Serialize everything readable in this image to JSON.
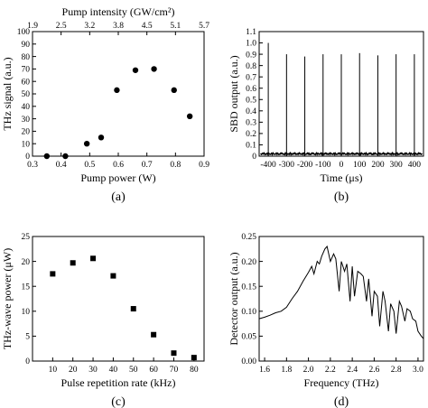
{
  "chart_data": [
    {
      "id": "a",
      "type": "scatter",
      "caption": "(a)",
      "xlabel": "Pump power (W)",
      "ylabel": "THz signal (a.u.)",
      "top_axis_label": "Pump intensity (GW/cm²)",
      "xlim": [
        0.3,
        0.9
      ],
      "ylim": [
        0,
        100
      ],
      "x_ticks": [
        "0.3",
        "0.4",
        "0.5",
        "0.6",
        "0.7",
        "0.8",
        "0.9"
      ],
      "y_ticks": [
        "0",
        "10",
        "20",
        "30",
        "40",
        "50",
        "60",
        "70",
        "80",
        "90",
        "100"
      ],
      "top_ticks": [
        "1.9",
        "2.5",
        "3.2",
        "3.8",
        "4.5",
        "5.1",
        "5.7"
      ],
      "marker": "circle",
      "grid": false,
      "x": [
        0.35,
        0.415,
        0.49,
        0.54,
        0.595,
        0.66,
        0.725,
        0.795,
        0.85
      ],
      "y": [
        0,
        0,
        10,
        15,
        53,
        69,
        70,
        53,
        32
      ]
    },
    {
      "id": "b",
      "type": "line",
      "caption": "(b)",
      "xlabel": "Time (μs)",
      "ylabel": "SBD output (a.u.)",
      "xlim": [
        -450,
        450
      ],
      "ylim": [
        0,
        1.1
      ],
      "x_ticks": [
        "-400",
        "-300",
        "-200",
        "-100",
        "0",
        "100",
        "200",
        "300",
        "400"
      ],
      "y_ticks": [
        "0",
        "0.1",
        "0.2",
        "0.3",
        "0.4",
        "0.5",
        "0.6",
        "0.7",
        "0.8",
        "0.9",
        "1.0",
        "1.1"
      ],
      "grid": false,
      "pulse_x": [
        -400,
        -300,
        -200,
        -100,
        0,
        100,
        200,
        300,
        400
      ],
      "pulse_y": [
        1.0,
        0.9,
        0.88,
        0.9,
        0.9,
        0.91,
        0.89,
        0.9,
        0.9
      ],
      "noise_level": 0.03
    },
    {
      "id": "c",
      "type": "scatter",
      "caption": "(c)",
      "xlabel": "Pulse repetition rate (kHz)",
      "ylabel": "THz-wave power (μW)",
      "xlim": [
        0,
        85
      ],
      "ylim": [
        0,
        25
      ],
      "x_ticks": [
        "10",
        "20",
        "30",
        "40",
        "50",
        "60",
        "70",
        "80"
      ],
      "y_ticks": [
        "0",
        "5",
        "10",
        "15",
        "20",
        "25"
      ],
      "marker": "square",
      "grid": false,
      "x": [
        10,
        20,
        30,
        40,
        50,
        60,
        70,
        80
      ],
      "y": [
        17.5,
        19.7,
        20.6,
        17.1,
        10.5,
        5.3,
        1.6,
        0.7
      ]
    },
    {
      "id": "d",
      "type": "line",
      "caption": "(d)",
      "xlabel": "Frequency (THz)",
      "ylabel": "Detector output (a.u.)",
      "xlim": [
        1.55,
        3.05
      ],
      "ylim": [
        0,
        0.25
      ],
      "x_ticks": [
        "1.6",
        "1.8",
        "2.0",
        "2.2",
        "2.4",
        "2.6",
        "2.8",
        "3.0"
      ],
      "y_ticks": [
        "0.00",
        "0.05",
        "0.10",
        "0.15",
        "0.20",
        "0.25"
      ],
      "grid": false,
      "x": [
        1.55,
        1.6,
        1.65,
        1.7,
        1.75,
        1.8,
        1.85,
        1.9,
        1.95,
        2.0,
        2.03,
        2.05,
        2.08,
        2.1,
        2.12,
        2.15,
        2.17,
        2.2,
        2.23,
        2.25,
        2.28,
        2.3,
        2.33,
        2.35,
        2.38,
        2.4,
        2.42,
        2.45,
        2.48,
        2.5,
        2.53,
        2.55,
        2.58,
        2.6,
        2.63,
        2.65,
        2.68,
        2.7,
        2.73,
        2.75,
        2.78,
        2.8,
        2.83,
        2.85,
        2.88,
        2.9,
        2.93,
        2.95,
        2.98,
        3.0,
        3.03,
        3.05
      ],
      "y": [
        0.085,
        0.088,
        0.092,
        0.097,
        0.1,
        0.108,
        0.125,
        0.14,
        0.16,
        0.178,
        0.19,
        0.175,
        0.2,
        0.195,
        0.21,
        0.225,
        0.23,
        0.2,
        0.215,
        0.205,
        0.14,
        0.2,
        0.18,
        0.195,
        0.12,
        0.19,
        0.13,
        0.18,
        0.175,
        0.17,
        0.12,
        0.165,
        0.09,
        0.14,
        0.13,
        0.07,
        0.14,
        0.12,
        0.06,
        0.115,
        0.1,
        0.055,
        0.12,
        0.11,
        0.08,
        0.105,
        0.1,
        0.085,
        0.08,
        0.06,
        0.05,
        0.045
      ]
    }
  ]
}
